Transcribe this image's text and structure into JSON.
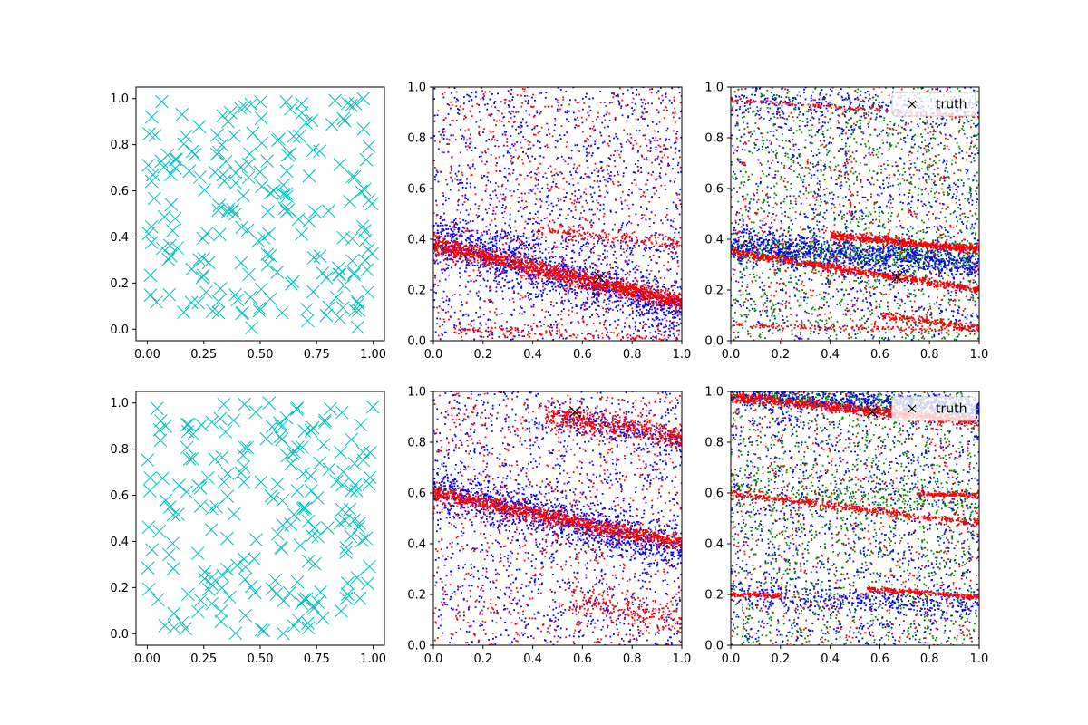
{
  "colors": {
    "background": "#ffffff",
    "axis": "#000000",
    "cyan": "#00bfbf",
    "blue": "#0000ff",
    "red": "#ff0000",
    "green": "#008000",
    "truth_marker": "#000000"
  },
  "chart_data": [
    {
      "id": "top-left",
      "type": "scatter",
      "title": "",
      "xlabel": "",
      "ylabel": "",
      "xlim": [
        -0.05,
        1.05
      ],
      "ylim": [
        -0.05,
        1.05
      ],
      "xticks": [
        0.0,
        0.25,
        0.5,
        0.75,
        1.0
      ],
      "xtick_labels": [
        "0.00",
        "0.25",
        "0.50",
        "0.75",
        "1.00"
      ],
      "yticks": [
        0.0,
        0.2,
        0.4,
        0.6,
        0.8,
        1.0
      ],
      "ytick_labels": [
        "0.0",
        "0.2",
        "0.4",
        "0.6",
        "0.8",
        "1.0"
      ],
      "grid": false,
      "marker": "x",
      "marker_color": "cyan",
      "point_count": 200,
      "distribution": "uniform random on [0,1] x [0,1]"
    },
    {
      "id": "top-middle",
      "type": "scatter",
      "title": "",
      "xlim": [
        0.0,
        1.0
      ],
      "ylim": [
        0.0,
        1.0
      ],
      "xticks": [
        0.0,
        0.2,
        0.4,
        0.6,
        0.8,
        1.0
      ],
      "xtick_labels": [
        "0.0",
        "0.2",
        "0.4",
        "0.6",
        "0.8",
        "1.0"
      ],
      "yticks": [
        0.0,
        0.2,
        0.4,
        0.6,
        0.8,
        1.0
      ],
      "ytick_labels": [
        "0.0",
        "0.2",
        "0.4",
        "0.6",
        "0.8",
        "1.0"
      ],
      "grid": false,
      "series": [
        {
          "color": "blue",
          "point_count": 2600,
          "bands": [
            {
              "y0": 0.4,
              "y1": 0.12,
              "width": 0.1,
              "fraction": 0.45
            },
            {
              "y0": 0.42,
              "y1": 0.35,
              "width": 0.04,
              "fraction": 0.05
            }
          ],
          "background_fraction": 0.5
        },
        {
          "color": "red",
          "point_count": 2600,
          "bands": [
            {
              "y0": 0.38,
              "y1": 0.15,
              "width": 0.035,
              "fraction": 0.55
            },
            {
              "y0": 0.05,
              "y1": 0.0,
              "width": 0.02,
              "fraction": 0.05
            },
            {
              "y0": 0.48,
              "y1": 0.38,
              "width": 0.03,
              "fraction": 0.06,
              "x_range": [
                0.4,
                1.0
              ]
            }
          ],
          "background_fraction": 0.34
        }
      ],
      "truth": {
        "x": 0.67,
        "y": 0.25,
        "marker": "x"
      }
    },
    {
      "id": "top-right",
      "type": "scatter",
      "title": "",
      "xlim": [
        0.0,
        1.0
      ],
      "ylim": [
        0.0,
        1.0
      ],
      "xticks": [
        0.0,
        0.2,
        0.4,
        0.6,
        0.8,
        1.0
      ],
      "xtick_labels": [
        "0.0",
        "0.2",
        "0.4",
        "0.6",
        "0.8",
        "1.0"
      ],
      "yticks": [
        0.0,
        0.2,
        0.4,
        0.6,
        0.8,
        1.0
      ],
      "ytick_labels": [
        "0.0",
        "0.2",
        "0.4",
        "0.6",
        "0.8",
        "1.0"
      ],
      "grid": false,
      "legend": {
        "entries": [
          "truth"
        ],
        "placement": "upper right"
      },
      "series": [
        {
          "color": "green",
          "point_count": 2000,
          "bands": [
            {
              "y0": 0.36,
              "y1": 0.33,
              "width": 0.06,
              "fraction": 0.3
            }
          ],
          "background_fraction": 0.7
        },
        {
          "color": "blue",
          "point_count": 2200,
          "bands": [
            {
              "y0": 0.38,
              "y1": 0.3,
              "width": 0.07,
              "fraction": 0.45
            },
            {
              "y0": 0.95,
              "y1": 0.9,
              "width": 0.05,
              "fraction": 0.1
            }
          ],
          "background_fraction": 0.45
        },
        {
          "color": "red",
          "point_count": 2400,
          "bands": [
            {
              "y0": 0.35,
              "y1": 0.2,
              "width": 0.015,
              "fraction": 0.28
            },
            {
              "y0": 0.45,
              "y1": 0.36,
              "width": 0.015,
              "fraction": 0.26,
              "x_range": [
                0.4,
                1.0
              ]
            },
            {
              "y0": 0.06,
              "y1": 0.04,
              "width": 0.01,
              "fraction": 0.06
            },
            {
              "y0": 0.95,
              "y1": 0.88,
              "width": 0.01,
              "fraction": 0.06
            },
            {
              "y0": 0.18,
              "y1": 0.05,
              "width": 0.015,
              "fraction": 0.08,
              "x_range": [
                0.6,
                1.0
              ]
            }
          ],
          "background_fraction": 0.26
        }
      ],
      "truth": {
        "x": 0.67,
        "y": 0.25,
        "marker": "x",
        "label": "truth"
      }
    },
    {
      "id": "bottom-left",
      "type": "scatter",
      "title": "",
      "xlim": [
        -0.05,
        1.05
      ],
      "ylim": [
        -0.05,
        1.05
      ],
      "xticks": [
        0.0,
        0.25,
        0.5,
        0.75,
        1.0
      ],
      "xtick_labels": [
        "0.00",
        "0.25",
        "0.50",
        "0.75",
        "1.00"
      ],
      "yticks": [
        0.0,
        0.2,
        0.4,
        0.6,
        0.8,
        1.0
      ],
      "ytick_labels": [
        "0.0",
        "0.2",
        "0.4",
        "0.6",
        "0.8",
        "1.0"
      ],
      "grid": false,
      "marker": "x",
      "marker_color": "cyan",
      "point_count": 200,
      "distribution": "uniform random on [0,1] x [0,1]"
    },
    {
      "id": "bottom-middle",
      "type": "scatter",
      "title": "",
      "xlim": [
        0.0,
        1.0
      ],
      "ylim": [
        0.0,
        1.0
      ],
      "xticks": [
        0.0,
        0.2,
        0.4,
        0.6,
        0.8,
        1.0
      ],
      "xtick_labels": [
        "0.0",
        "0.2",
        "0.4",
        "0.6",
        "0.8",
        "1.0"
      ],
      "yticks": [
        0.0,
        0.2,
        0.4,
        0.6,
        0.8,
        1.0
      ],
      "ytick_labels": [
        "0.0",
        "0.2",
        "0.4",
        "0.6",
        "0.8",
        "1.0"
      ],
      "grid": false,
      "series": [
        {
          "color": "blue",
          "point_count": 2600,
          "bands": [
            {
              "y0": 0.62,
              "y1": 0.38,
              "width": 0.09,
              "fraction": 0.42
            },
            {
              "y0": 1.0,
              "y1": 0.8,
              "width": 0.06,
              "fraction": 0.08,
              "x_range": [
                0.5,
                1.0
              ]
            }
          ],
          "background_fraction": 0.5
        },
        {
          "color": "red",
          "point_count": 2600,
          "bands": [
            {
              "y0": 0.6,
              "y1": 0.4,
              "width": 0.03,
              "fraction": 0.42
            },
            {
              "y0": 0.98,
              "y1": 0.82,
              "width": 0.05,
              "fraction": 0.18,
              "x_range": [
                0.45,
                1.0
              ]
            },
            {
              "y0": 0.3,
              "y1": 0.1,
              "width": 0.06,
              "fraction": 0.08,
              "x_range": [
                0.55,
                1.0
              ]
            }
          ],
          "background_fraction": 0.32
        }
      ],
      "truth": {
        "x": 0.57,
        "y": 0.92,
        "marker": "x"
      }
    },
    {
      "id": "bottom-right",
      "type": "scatter",
      "title": "",
      "xlim": [
        0.0,
        1.0
      ],
      "ylim": [
        0.0,
        1.0
      ],
      "xticks": [
        0.0,
        0.2,
        0.4,
        0.6,
        0.8,
        1.0
      ],
      "xtick_labels": [
        "0.0",
        "0.2",
        "0.4",
        "0.6",
        "0.8",
        "1.0"
      ],
      "yticks": [
        0.0,
        0.2,
        0.4,
        0.6,
        0.8,
        1.0
      ],
      "ytick_labels": [
        "0.0",
        "0.2",
        "0.4",
        "0.6",
        "0.8",
        "1.0"
      ],
      "grid": false,
      "legend": {
        "entries": [
          "truth"
        ],
        "placement": "upper right"
      },
      "series": [
        {
          "color": "green",
          "point_count": 2000,
          "bands": [
            {
              "y0": 0.99,
              "y1": 0.93,
              "width": 0.04,
              "fraction": 0.2
            },
            {
              "y0": 0.62,
              "y1": 0.55,
              "width": 0.05,
              "fraction": 0.1
            }
          ],
          "background_fraction": 0.7
        },
        {
          "color": "blue",
          "point_count": 2200,
          "bands": [
            {
              "y0": 0.99,
              "y1": 0.93,
              "width": 0.05,
              "fraction": 0.3
            },
            {
              "y0": 0.2,
              "y1": 0.15,
              "width": 0.05,
              "fraction": 0.15
            }
          ],
          "background_fraction": 0.55
        },
        {
          "color": "red",
          "point_count": 2400,
          "bands": [
            {
              "y0": 0.98,
              "y1": 0.88,
              "width": 0.02,
              "fraction": 0.38
            },
            {
              "y0": 0.6,
              "y1": 0.48,
              "width": 0.015,
              "fraction": 0.18
            },
            {
              "y0": 0.62,
              "y1": 0.59,
              "width": 0.01,
              "fraction": 0.06,
              "x_range": [
                0.75,
                1.0
              ]
            },
            {
              "y0": 0.2,
              "y1": 0.18,
              "width": 0.01,
              "fraction": 0.04,
              "x_range": [
                0.0,
                0.2
              ]
            },
            {
              "y0": 0.26,
              "y1": 0.19,
              "width": 0.01,
              "fraction": 0.1,
              "x_range": [
                0.55,
                1.0
              ]
            }
          ],
          "background_fraction": 0.24
        }
      ],
      "truth": {
        "x": 0.57,
        "y": 0.92,
        "marker": "x",
        "label": "truth"
      }
    }
  ]
}
